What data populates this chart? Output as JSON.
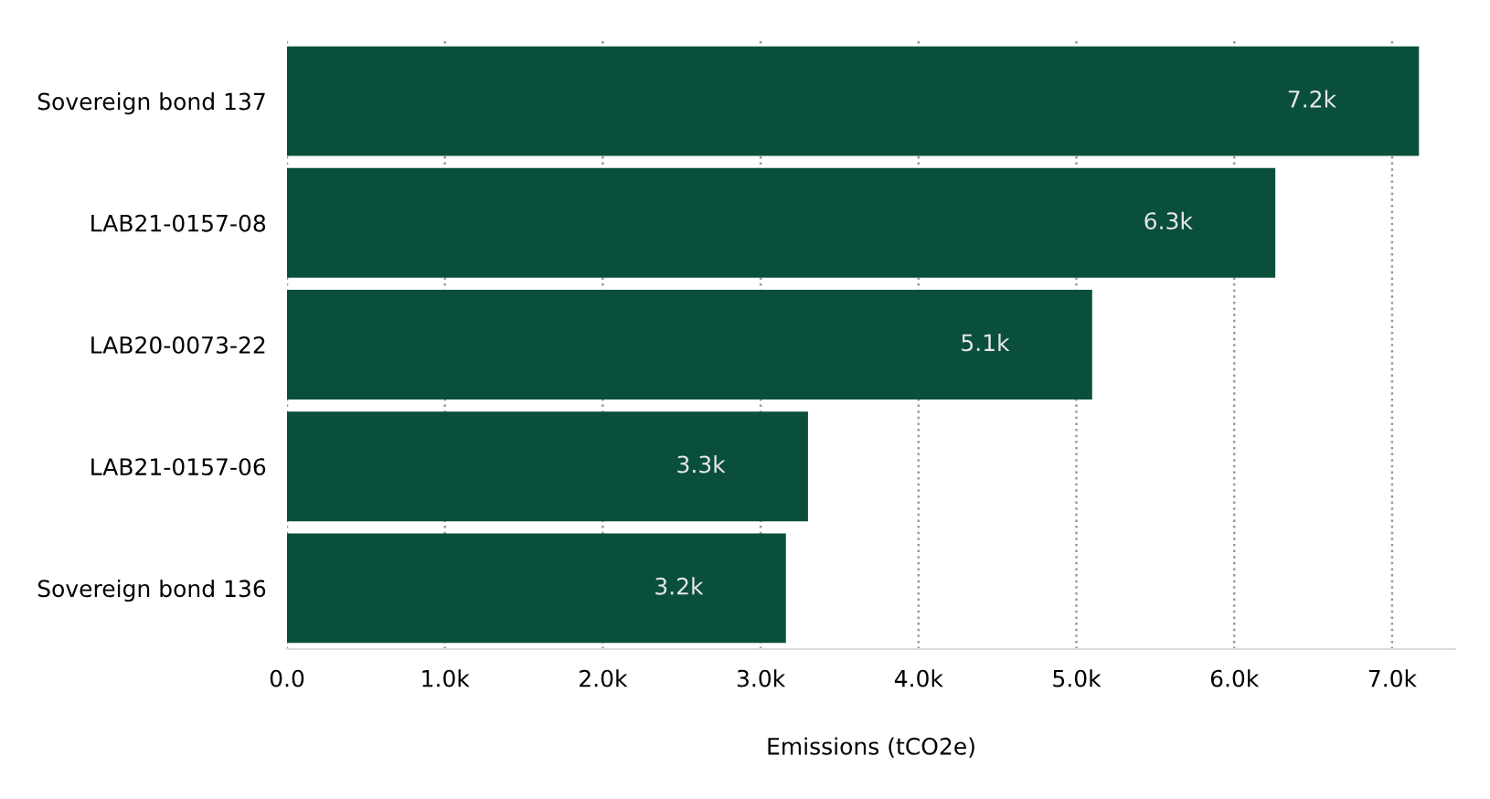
{
  "chart_data": {
    "type": "bar",
    "orientation": "horizontal",
    "xlabel": "Emissions (tCO2e)",
    "categories": [
      "Sovereign bond 137",
      "LAB21-0157-08",
      "LAB20-0073-22",
      "LAB21-0157-06",
      "Sovereign bond 136"
    ],
    "values": [
      7170,
      6260,
      5100,
      3300,
      3160
    ],
    "value_labels": [
      "7.2k",
      "6.3k",
      "5.1k",
      "3.3k",
      "3.2k"
    ],
    "color": "#0a4f3c",
    "xlim": [
      0,
      7400
    ],
    "xticks": [
      {
        "value": 0,
        "label": "0.0"
      },
      {
        "value": 1000,
        "label": "1.0k"
      },
      {
        "value": 2000,
        "label": "2.0k"
      },
      {
        "value": 3000,
        "label": "3.0k"
      },
      {
        "value": 4000,
        "label": "4.0k"
      },
      {
        "value": 5000,
        "label": "5.0k"
      },
      {
        "value": 6000,
        "label": "6.0k"
      },
      {
        "value": 7000,
        "label": "7.0k"
      }
    ],
    "grid": "x",
    "line_style": "dotted"
  }
}
